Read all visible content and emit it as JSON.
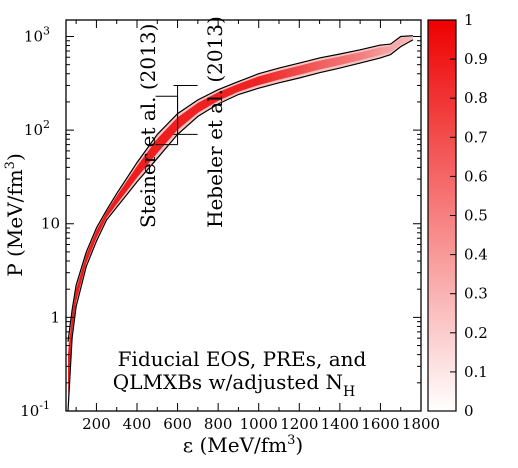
{
  "chart_data": {
    "type": "heatmap",
    "title": "",
    "xlabel": "ε (MeV/fm³)",
    "ylabel": "P (MeV/fm³)",
    "xlim": [
      50,
      1800
    ],
    "ylim": [
      0.1,
      1500
    ],
    "yscale": "log",
    "x_ticks": [
      200,
      400,
      600,
      800,
      1000,
      1200,
      1400,
      1600,
      1800
    ],
    "y_ticks": [
      {
        "value": 0.1,
        "base": "10",
        "exp": "-1"
      },
      {
        "value": 1,
        "label": "1"
      },
      {
        "value": 10,
        "label": "10"
      },
      {
        "value": 100,
        "base": "10",
        "exp": "2"
      },
      {
        "value": 1000,
        "base": "10",
        "exp": "3"
      }
    ],
    "colorbar": {
      "min": 0,
      "max": 1,
      "ticks": [
        "0",
        "0.1",
        "0.2",
        "0.3",
        "0.4",
        "0.5",
        "0.6",
        "0.7",
        "0.8",
        "0.9",
        "1"
      ],
      "low_color": "#ffffff",
      "high_color": "#ee0000"
    },
    "band_upper": [
      [
        60,
        0.55
      ],
      [
        80,
        1.2
      ],
      [
        100,
        2.2
      ],
      [
        150,
        5
      ],
      [
        200,
        9
      ],
      [
        250,
        14
      ],
      [
        300,
        21
      ],
      [
        400,
        45
      ],
      [
        500,
        90
      ],
      [
        600,
        150
      ],
      [
        700,
        210
      ],
      [
        800,
        270
      ],
      [
        900,
        330
      ],
      [
        1000,
        400
      ],
      [
        1100,
        460
      ],
      [
        1200,
        520
      ],
      [
        1300,
        590
      ],
      [
        1400,
        650
      ],
      [
        1500,
        720
      ],
      [
        1600,
        810
      ],
      [
        1650,
        830
      ],
      [
        1700,
        1000
      ],
      [
        1760,
        1020
      ]
    ],
    "band_lower": [
      [
        60,
        0.1
      ],
      [
        80,
        0.6
      ],
      [
        100,
        1.3
      ],
      [
        150,
        3.5
      ],
      [
        200,
        6.5
      ],
      [
        250,
        11
      ],
      [
        300,
        15
      ],
      [
        400,
        28
      ],
      [
        500,
        50
      ],
      [
        600,
        90
      ],
      [
        700,
        140
      ],
      [
        800,
        190
      ],
      [
        900,
        240
      ],
      [
        1000,
        280
      ],
      [
        1100,
        320
      ],
      [
        1200,
        360
      ],
      [
        1300,
        410
      ],
      [
        1400,
        460
      ],
      [
        1500,
        520
      ],
      [
        1600,
        590
      ],
      [
        1650,
        640
      ],
      [
        1700,
        780
      ],
      [
        1760,
        920
      ]
    ],
    "ridge": [
      [
        60,
        0.25
      ],
      [
        100,
        1.8
      ],
      [
        150,
        4.2
      ],
      [
        200,
        7.8
      ],
      [
        300,
        18
      ],
      [
        400,
        36
      ],
      [
        500,
        68
      ],
      [
        600,
        115
      ],
      [
        700,
        170
      ],
      [
        800,
        225
      ],
      [
        900,
        280
      ],
      [
        1000,
        335
      ],
      [
        1100,
        385
      ],
      [
        1200,
        435
      ],
      [
        1300,
        490
      ],
      [
        1400,
        545
      ],
      [
        1500,
        600
      ],
      [
        1600,
        660
      ],
      [
        1700,
        720
      ]
    ],
    "annotations": {
      "steiner": "Steiner et al. (2013)",
      "hebeler": "Hebeler et al. (2013)",
      "legend_line1": "Fiducial EOS, PREs, and",
      "legend_line2": "QLMXBs w/adjusted N",
      "legend_sub": "H"
    },
    "steiner_bar": {
      "x": 600,
      "low": 70,
      "high": 230
    },
    "hebeler_bar": {
      "x": 600,
      "low": 90,
      "high": 300
    }
  }
}
